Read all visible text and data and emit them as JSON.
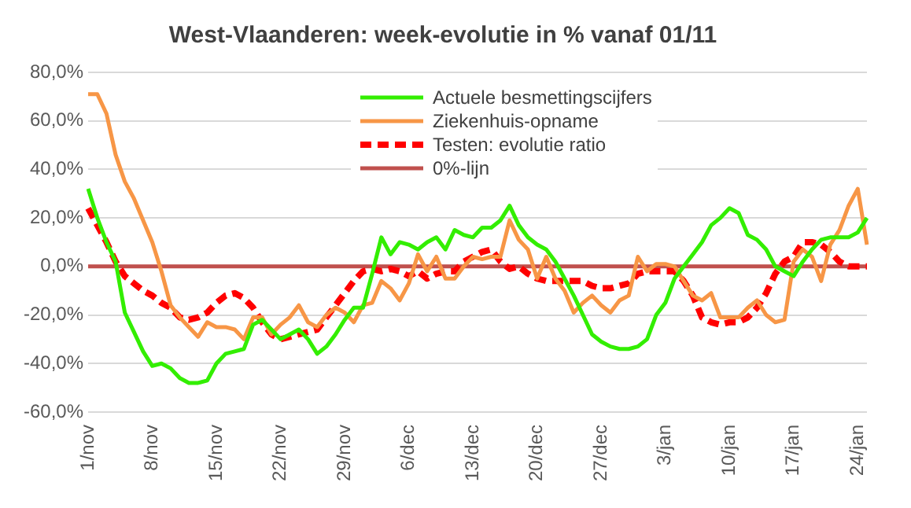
{
  "chart_data": {
    "type": "line",
    "title": "West-Vlaanderen: week-evolutie in % vanaf 01/11",
    "categories": [
      "1/nov",
      null,
      null,
      null,
      null,
      null,
      null,
      "8/nov",
      null,
      null,
      null,
      null,
      null,
      null,
      "15/nov",
      null,
      null,
      null,
      null,
      null,
      null,
      "22/nov",
      null,
      null,
      null,
      null,
      null,
      null,
      "29/nov",
      null,
      null,
      null,
      null,
      null,
      null,
      "6/dec",
      null,
      null,
      null,
      null,
      null,
      null,
      "13/dec",
      null,
      null,
      null,
      null,
      null,
      null,
      "20/dec",
      null,
      null,
      null,
      null,
      null,
      null,
      "27/dec",
      null,
      null,
      null,
      null,
      null,
      null,
      "3/jan",
      null,
      null,
      null,
      null,
      null,
      null,
      "10/jan",
      null,
      null,
      null,
      null,
      null,
      null,
      "17/jan",
      null,
      null,
      null,
      null,
      null,
      null,
      "24/jan",
      null
    ],
    "series": [
      {
        "name": "Actuele besmettingscijfers",
        "color": "#33ee00",
        "values": [
          32,
          20,
          10,
          2,
          -19,
          -27,
          -35,
          -41,
          -40,
          -42,
          -46,
          -48,
          -48,
          -47,
          -40,
          -36,
          -35,
          -34,
          -24,
          -22,
          -26,
          -30,
          -28,
          -26,
          -30,
          -36,
          -33,
          -28,
          -22,
          -17,
          -17,
          -3,
          12,
          5,
          10,
          9,
          7,
          10,
          12,
          7,
          15,
          13,
          12,
          16,
          16,
          19,
          25,
          17,
          12,
          9,
          7,
          2,
          -5,
          -12,
          -20,
          -28,
          -31,
          -33,
          -34,
          -34,
          -33,
          -30,
          -20,
          -15,
          -5,
          0,
          5,
          10,
          17,
          20,
          24,
          22,
          13,
          11,
          7,
          0,
          -2,
          -4,
          2,
          7,
          11,
          12,
          12,
          12,
          14,
          20
        ]
      },
      {
        "name": "Ziekenhuis-opname",
        "color": "#f79646",
        "values": [
          71,
          71,
          63,
          46,
          35,
          28,
          19,
          10,
          -2,
          -16,
          -21,
          -25,
          -29,
          -23,
          -25,
          -25,
          -26,
          -30,
          -21,
          -21,
          -28,
          -24,
          -21,
          -16,
          -23,
          -25,
          -20,
          -17,
          -19,
          -23,
          -16,
          -15,
          -6,
          -9,
          -14,
          -7,
          5,
          -2,
          4,
          -5,
          -5,
          0,
          4,
          3,
          4,
          4,
          19,
          11,
          7,
          -5,
          4,
          -5,
          -10,
          -19,
          -15,
          -12,
          -16,
          -19,
          -14,
          -12,
          4,
          -2,
          1,
          1,
          0,
          -6,
          -12,
          -14,
          -11,
          -21,
          -21,
          -21,
          -17,
          -14,
          -20,
          -23,
          -22,
          2,
          7,
          4,
          -6,
          9,
          15,
          25,
          32,
          9
        ]
      },
      {
        "name": "Testen: evolutie ratio",
        "color": "#ff0000",
        "line_style": "dashed",
        "values": [
          24,
          17,
          10,
          2,
          -4,
          -7,
          -10,
          -12,
          -15,
          -17,
          -21,
          -22,
          -21,
          -19,
          -15,
          -12,
          -11,
          -13,
          -17,
          -23,
          -28,
          -30,
          -29,
          -28,
          -27,
          -26,
          -21,
          -16,
          -11,
          -6,
          -2,
          -1,
          -2,
          -1,
          -2,
          -4,
          -2,
          -5,
          -3,
          -2,
          -2,
          2,
          4,
          6,
          7,
          2,
          -1,
          0,
          -3,
          -5,
          -6,
          -6,
          -6,
          -6,
          -6,
          -8,
          -9,
          -9,
          -8,
          -7,
          -3,
          -2,
          -2,
          -2,
          -2,
          -6,
          -12,
          -21,
          -23,
          -24,
          -23,
          -23,
          -21,
          -17,
          -11,
          -3,
          2,
          4,
          10,
          10,
          9,
          6,
          2,
          0,
          0,
          0
        ]
      },
      {
        "name": "0%-lijn",
        "color": "#c0504d",
        "values": [
          0,
          0,
          0,
          0,
          0,
          0,
          0,
          0,
          0,
          0,
          0,
          0,
          0,
          0,
          0,
          0,
          0,
          0,
          0,
          0,
          0,
          0,
          0,
          0,
          0,
          0,
          0,
          0,
          0,
          0,
          0,
          0,
          0,
          0,
          0,
          0,
          0,
          0,
          0,
          0,
          0,
          0,
          0,
          0,
          0,
          0,
          0,
          0,
          0,
          0,
          0,
          0,
          0,
          0,
          0,
          0,
          0,
          0,
          0,
          0,
          0,
          0,
          0,
          0,
          0,
          0,
          0,
          0,
          0,
          0,
          0,
          0,
          0,
          0,
          0,
          0,
          0,
          0,
          0,
          0,
          0,
          0,
          0,
          0,
          0,
          0
        ]
      }
    ],
    "ylim": [
      -60,
      80
    ],
    "yticks": [
      {
        "value": -60,
        "label": "-60,0%"
      },
      {
        "value": -40,
        "label": "-40,0%"
      },
      {
        "value": -20,
        "label": "-20,0%"
      },
      {
        "value": 0,
        "label": "0,0%"
      },
      {
        "value": 20,
        "label": "20,0%"
      },
      {
        "value": 40,
        "label": "40,0%"
      },
      {
        "value": 60,
        "label": "60,0%"
      },
      {
        "value": 80,
        "label": "80,0%"
      }
    ],
    "grid": "y",
    "legend": "top",
    "marker": "none",
    "line_style": "solid"
  }
}
